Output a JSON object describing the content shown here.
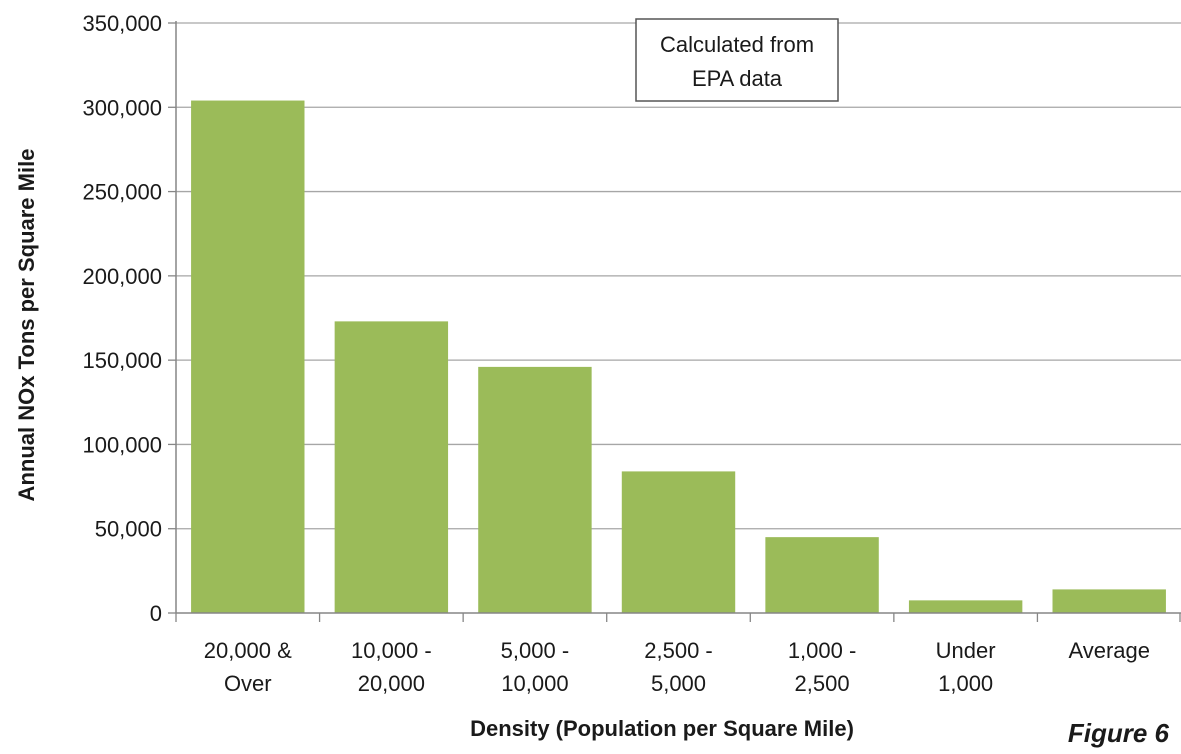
{
  "chart_data": {
    "type": "bar",
    "categories": [
      [
        "20,000 &",
        "Over"
      ],
      [
        "10,000 -",
        "20,000"
      ],
      [
        "5,000 -",
        "10,000"
      ],
      [
        "2,500 -",
        "5,000"
      ],
      [
        "1,000 -",
        "2,500"
      ],
      [
        "Under",
        "1,000"
      ],
      [
        "Average"
      ]
    ],
    "values": [
      304000,
      173000,
      146000,
      84000,
      45000,
      7500,
      14000
    ],
    "xlabel": "Density (Population per Square Mile)",
    "ylabel": "Annual NOx Tons per Square Mile",
    "ylim": [
      0,
      350000
    ],
    "yticks": [
      0,
      50000,
      100000,
      150000,
      200000,
      250000,
      300000,
      350000
    ],
    "ytick_labels": [
      "0",
      "50,000",
      "100,000",
      "150,000",
      "200,000",
      "250,000",
      "300,000",
      "350,000"
    ],
    "grid": true,
    "bar_color": "#9bbb59",
    "grid_color": "#a6a6a6",
    "axis_color": "#868686",
    "annotation": [
      "Calculated from",
      "EPA data"
    ],
    "figure_label": "Figure 6"
  }
}
